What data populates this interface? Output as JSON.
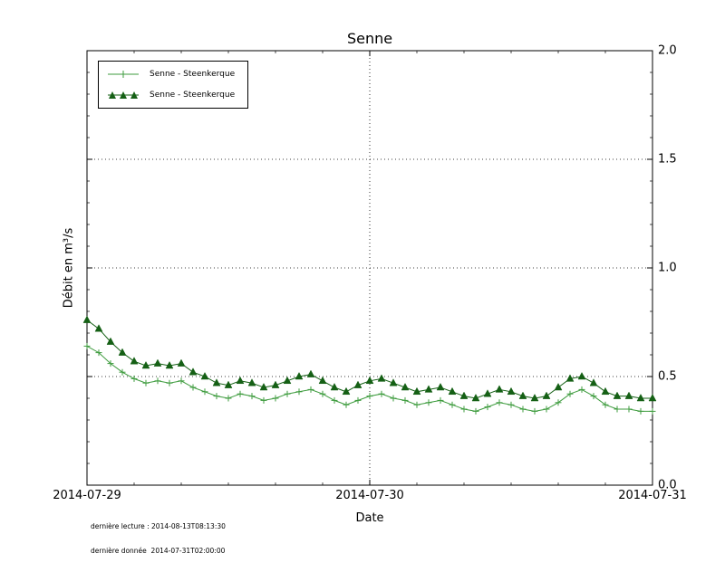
{
  "chart_data": {
    "type": "line",
    "title": "Senne",
    "xlabel": "Date",
    "ylabel": "Débit en m³/s",
    "xlim": [
      0,
      48
    ],
    "ylim": [
      0.0,
      2.0
    ],
    "x_unit": "hours from 2014-07-29 00:00",
    "x_ticks": [
      0,
      24,
      48
    ],
    "x_ticklabels": [
      "2014-07-29",
      "2014-07-30",
      "2014-07-31"
    ],
    "y_ticks": [
      0.0,
      0.5,
      1.0,
      1.5,
      2.0
    ],
    "y_ticklabels": [
      "0.0",
      "0.5",
      "1.0",
      "1.5",
      "2.0"
    ],
    "grid": {
      "style": "dotted",
      "y_values": [
        0.5,
        1.0,
        1.5
      ],
      "x_values": [
        24
      ]
    },
    "legend_position": "upper-left",
    "series": [
      {
        "name": "Senne - Steenkerque",
        "marker": "plus",
        "color": "#3d9b3d",
        "values": [
          0.64,
          0.61,
          0.56,
          0.52,
          0.49,
          0.47,
          0.48,
          0.47,
          0.48,
          0.45,
          0.43,
          0.41,
          0.4,
          0.42,
          0.41,
          0.39,
          0.4,
          0.42,
          0.43,
          0.44,
          0.42,
          0.39,
          0.37,
          0.39,
          0.41,
          0.42,
          0.4,
          0.39,
          0.37,
          0.38,
          0.39,
          0.37,
          0.35,
          0.34,
          0.36,
          0.38,
          0.37,
          0.35,
          0.34,
          0.35,
          0.38,
          0.42,
          0.44,
          0.41,
          0.37,
          0.35,
          0.35,
          0.34,
          0.34
        ]
      },
      {
        "name": "Senne - Steenkerque",
        "marker": "triangle",
        "color": "#156015",
        "values": [
          0.76,
          0.72,
          0.66,
          0.61,
          0.57,
          0.55,
          0.56,
          0.55,
          0.56,
          0.52,
          0.5,
          0.47,
          0.46,
          0.48,
          0.47,
          0.45,
          0.46,
          0.48,
          0.5,
          0.51,
          0.48,
          0.45,
          0.43,
          0.46,
          0.48,
          0.49,
          0.47,
          0.45,
          0.43,
          0.44,
          0.45,
          0.43,
          0.41,
          0.4,
          0.42,
          0.44,
          0.43,
          0.41,
          0.4,
          0.41,
          0.45,
          0.49,
          0.5,
          0.47,
          0.43,
          0.41,
          0.41,
          0.4,
          0.4
        ]
      }
    ]
  },
  "footer": {
    "line1": "dernière lecture : 2014-08-13T08:13:30",
    "line2": "dernière donnée  2014-07-31T02:00:00"
  }
}
